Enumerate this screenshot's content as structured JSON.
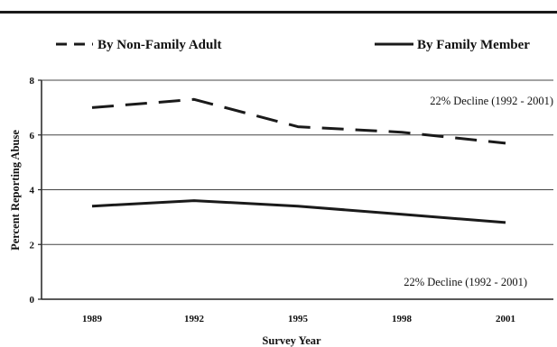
{
  "chart_data": {
    "type": "line",
    "x": [
      1989,
      1992,
      1995,
      1998,
      2001
    ],
    "x_tick_labels": [
      "1989",
      "1992",
      "1995",
      "1998",
      "2001"
    ],
    "y_tick_labels": [
      "0",
      "2",
      "4",
      "6",
      "8"
    ],
    "ylim": [
      0,
      8
    ],
    "grid": true,
    "xlabel": "Survey Year",
    "ylabel": "Percent Reporting Abuse",
    "legend_position": "top",
    "series": [
      {
        "name": "By Non-Family Adult",
        "style": "dashed",
        "color": "#1a1a1a",
        "values": [
          7.0,
          7.3,
          6.3,
          6.1,
          5.7
        ]
      },
      {
        "name": "By Family Member",
        "style": "solid",
        "color": "#1a1a1a",
        "values": [
          3.4,
          3.6,
          3.4,
          3.1,
          2.8
        ]
      }
    ],
    "annotations": [
      {
        "text": "22% Decline (1992 - 2001)",
        "series": 0
      },
      {
        "text": "22% Decline (1992 - 2001)",
        "series": 1
      }
    ]
  }
}
